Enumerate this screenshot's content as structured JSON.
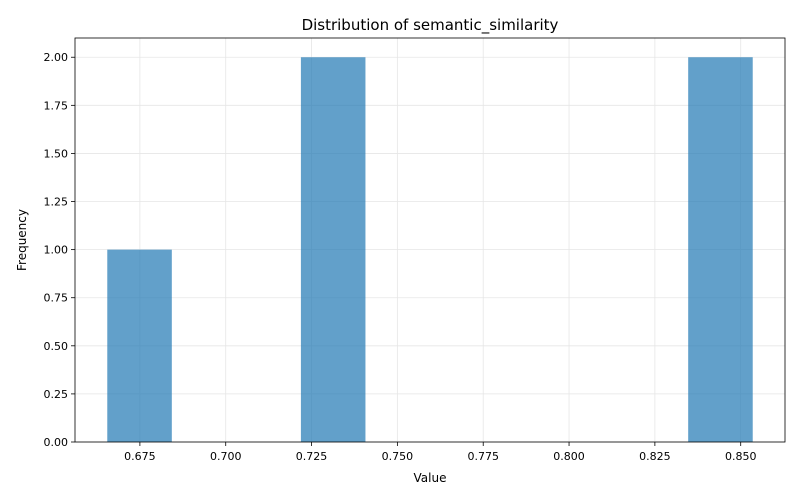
{
  "chart_data": {
    "type": "bar",
    "title": "Distribution of semantic_similarity",
    "xlabel": "Value",
    "ylabel": "Frequency",
    "bins": [
      {
        "start": 0.6655,
        "end": 0.6843,
        "count": 1
      },
      {
        "start": 0.6843,
        "end": 0.7031,
        "count": 0
      },
      {
        "start": 0.7031,
        "end": 0.7219,
        "count": 0
      },
      {
        "start": 0.7219,
        "end": 0.7407,
        "count": 2
      },
      {
        "start": 0.7407,
        "end": 0.7595,
        "count": 0
      },
      {
        "start": 0.7595,
        "end": 0.7783,
        "count": 0
      },
      {
        "start": 0.7783,
        "end": 0.7971,
        "count": 0
      },
      {
        "start": 0.7971,
        "end": 0.8159,
        "count": 0
      },
      {
        "start": 0.8159,
        "end": 0.8347,
        "count": 0
      },
      {
        "start": 0.8347,
        "end": 0.8535,
        "count": 2
      }
    ],
    "xlim": [
      0.6561,
      0.8629
    ],
    "ylim": [
      0,
      2.1
    ],
    "xticks": [
      "0.675",
      "0.700",
      "0.725",
      "0.750",
      "0.775",
      "0.800",
      "0.825",
      "0.850"
    ],
    "yticks": [
      "0.00",
      "0.25",
      "0.50",
      "0.75",
      "1.00",
      "1.25",
      "1.50",
      "1.75",
      "2.00"
    ],
    "grid": true,
    "bar_color": "#1f77b4",
    "bar_alpha": 0.7
  }
}
